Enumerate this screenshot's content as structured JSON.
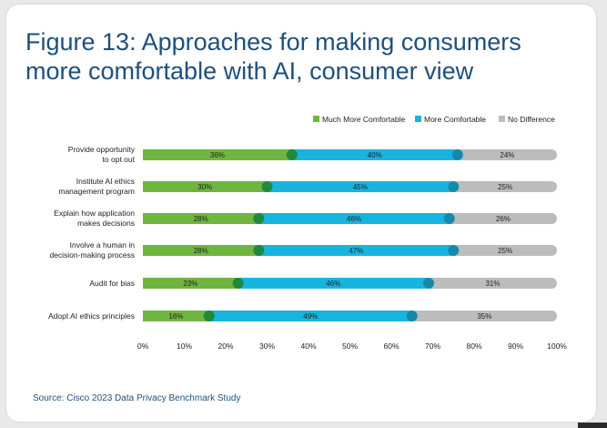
{
  "title_line1": "Figure 13: Approaches for making consumers",
  "title_line2": "more comfortable with AI, consumer view",
  "source": "Source: Cisco 2023 Data Privacy Benchmark Study",
  "colors": {
    "much_more": "#70b53f",
    "much_more_dot": "#1d8a3c",
    "more": "#18b4e0",
    "more_dot": "#1589a9",
    "no_diff": "#bcbcbc",
    "text": "#222222",
    "title": "#1e4f7c"
  },
  "chart_data": {
    "type": "bar",
    "orientation": "horizontal",
    "stacked": true,
    "categories": [
      "Provide opportunity\nto opt out",
      "Institute AI ethics\nmanagement program",
      "Explain how application\nmakes decisions",
      "Involve a human in\ndecision-making process",
      "Audit for bias",
      "Adopt AI ethics principles"
    ],
    "series": [
      {
        "name": "Much More Comfortable",
        "values": [
          36,
          30,
          28,
          28,
          23,
          16
        ],
        "labels": [
          "36%",
          "30%",
          "28%",
          "28%",
          "23%",
          "16%"
        ]
      },
      {
        "name": "More Comfortable",
        "values": [
          40,
          45,
          46,
          47,
          46,
          49
        ],
        "labels": [
          "40%",
          "45%",
          "46%",
          "47%",
          "46%",
          "49%"
        ]
      },
      {
        "name": "No Difference",
        "values": [
          24,
          25,
          26,
          25,
          31,
          35
        ],
        "labels": [
          "24%",
          "25%",
          "26%",
          "25%",
          "31%",
          "35%"
        ]
      }
    ],
    "xlim": [
      0,
      100
    ],
    "x_ticks": [
      "0%",
      "10%",
      "20%",
      "30%",
      "40%",
      "50%",
      "60%",
      "70%",
      "80%",
      "90%",
      "100%"
    ],
    "legend": "top-right",
    "grid": false
  }
}
